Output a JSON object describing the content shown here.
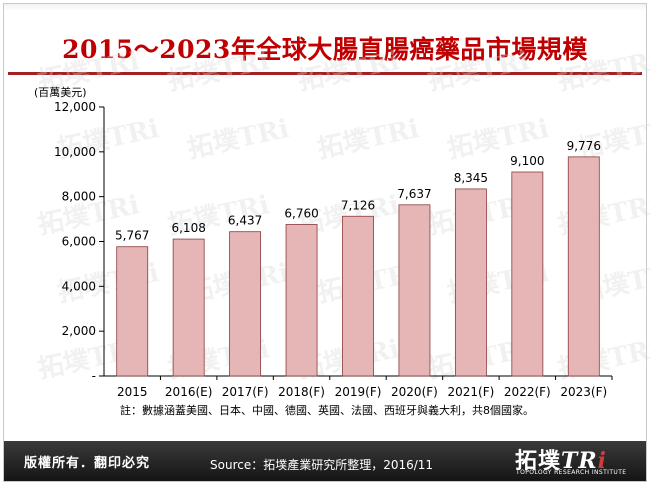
{
  "title": "2015～2023年全球大腸直腸癌藥品市場規模",
  "footer": {
    "rights": "版權所有．翻印必究",
    "source": "Source：拓墣產業研究所整理，2016/11",
    "logo_text": "拓墣TRi",
    "logo_subtext": "TOPOLOGY RESEARCH INSTITUTE"
  },
  "chart_data": {
    "type": "bar",
    "unit_label": "(百萬美元)",
    "categories": [
      "2015",
      "2016(E)",
      "2017(F)",
      "2018(F)",
      "2019(F)",
      "2020(F)",
      "2021(F)",
      "2022(F)",
      "2023(F)"
    ],
    "values": [
      5767,
      6108,
      6437,
      6760,
      7126,
      7637,
      8345,
      9100,
      9776
    ],
    "value_labels": [
      "5,767",
      "6,108",
      "6,437",
      "6,760",
      "7,126",
      "7,637",
      "8,345",
      "9,100",
      "9,776"
    ],
    "y_ticks": [
      0,
      2000,
      4000,
      6000,
      8000,
      10000,
      12000
    ],
    "y_tick_labels": [
      "-",
      "2,000",
      "4,000",
      "6,000",
      "8,000",
      "10,000",
      "12,000"
    ],
    "ylim": [
      0,
      12000
    ],
    "note": "註：數據涵蓋美國、日本、中國、德國、英國、法國、西班牙與義大利，共8個國家。",
    "bar_color": "#e6b6b7",
    "bar_edge_color": "#8a3b3c",
    "grid": false
  }
}
